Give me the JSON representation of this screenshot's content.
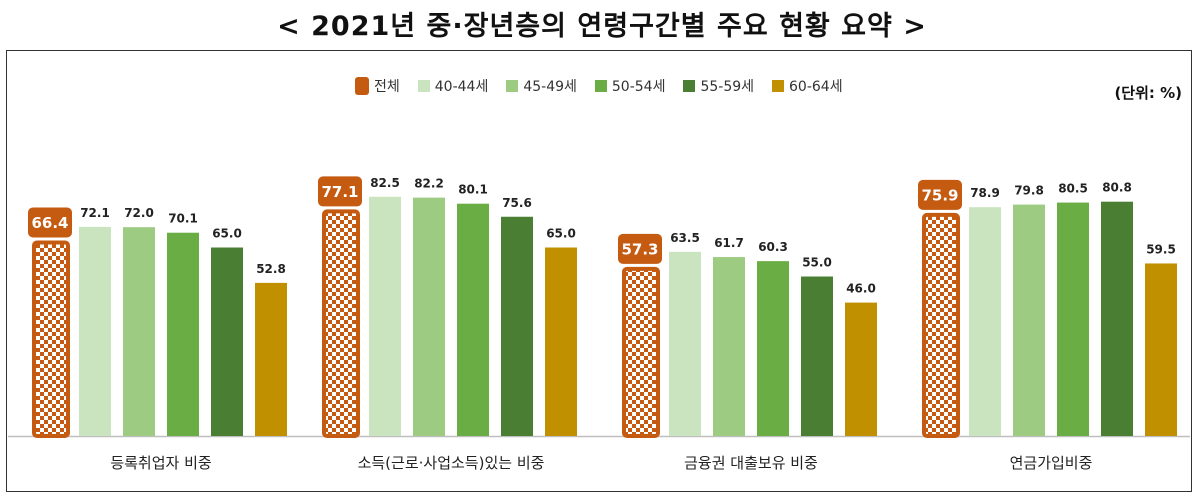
{
  "title": "< 2021년 중·장년층의 연령구간별 주요 현황 요약 >",
  "unit_label": "(단위: %)",
  "colors": {
    "total": "#C55A11",
    "40-44": "#C9E4BE",
    "45-49": "#9DCB82",
    "50-54": "#6AAD45",
    "55-59": "#4A7F33",
    "60-64": "#C09000"
  },
  "chart_data": {
    "type": "bar",
    "ylim": [
      0,
      100
    ],
    "grid": false,
    "legend_position": "top",
    "categories": [
      "등록취업자 비중",
      "소득(근로·사업소득)있는 비중",
      "금융권 대출보유 비중",
      "연금가입비중"
    ],
    "series": [
      {
        "name": "전체",
        "key": "total",
        "values": [
          66.4,
          77.1,
          57.3,
          75.9
        ]
      },
      {
        "name": "40-44세",
        "key": "40-44",
        "values": [
          72.1,
          82.5,
          63.5,
          78.9
        ]
      },
      {
        "name": "45-49세",
        "key": "45-49",
        "values": [
          72.0,
          82.2,
          61.7,
          79.8
        ]
      },
      {
        "name": "50-54세",
        "key": "50-54",
        "values": [
          70.1,
          80.1,
          60.3,
          80.5
        ]
      },
      {
        "name": "55-59세",
        "key": "55-59",
        "values": [
          65.0,
          75.6,
          55.0,
          80.8
        ]
      },
      {
        "name": "60-64세",
        "key": "60-64",
        "values": [
          52.8,
          65.0,
          46.0,
          59.5
        ]
      }
    ]
  }
}
